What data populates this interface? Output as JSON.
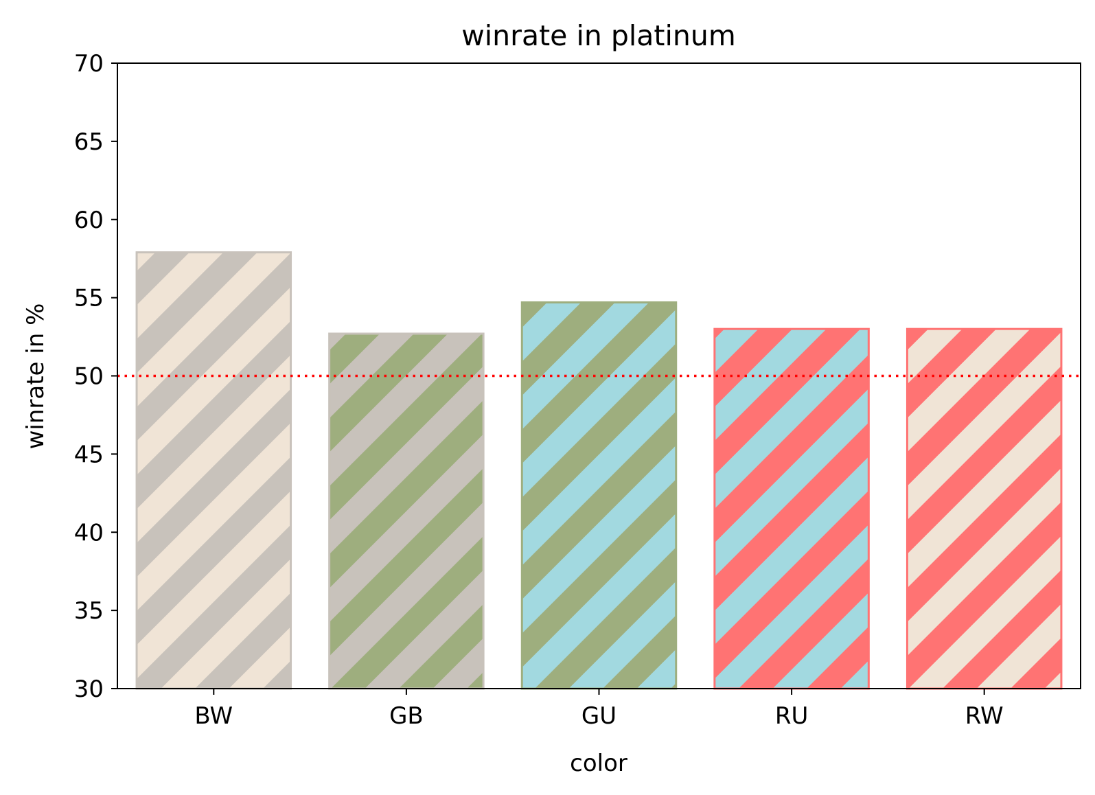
{
  "chart_data": {
    "type": "bar",
    "title": "winrate in platinum",
    "xlabel": "color",
    "ylabel": "winrate in %",
    "categories": [
      "BW",
      "GB",
      "GU",
      "RU",
      "RW"
    ],
    "values": [
      57.9,
      52.7,
      54.7,
      53.0,
      53.0
    ],
    "ylim": [
      30,
      70
    ],
    "yticks": [
      "30",
      "35",
      "40",
      "45",
      "50",
      "55",
      "60",
      "65",
      "70"
    ],
    "reference_line": {
      "value": 50,
      "color": "#ff0000",
      "style": "dotted"
    },
    "bar_colors": [
      {
        "edge": "#c8c2bb",
        "base": "#f0e4d6",
        "stripe": "#c8c2bb"
      },
      {
        "edge": "#c8c2bb",
        "base": "#c8c2bb",
        "stripe": "#9eae7e"
      },
      {
        "edge": "#9eae7e",
        "base": "#a2d9e0",
        "stripe": "#9eae7e"
      },
      {
        "edge": "#ff7373",
        "base": "#a2d9e0",
        "stripe": "#ff7373"
      },
      {
        "edge": "#ff7373",
        "base": "#f0e4d6",
        "stripe": "#ff7373"
      }
    ],
    "pattern": "diagonal-stripes",
    "grid": false
  }
}
